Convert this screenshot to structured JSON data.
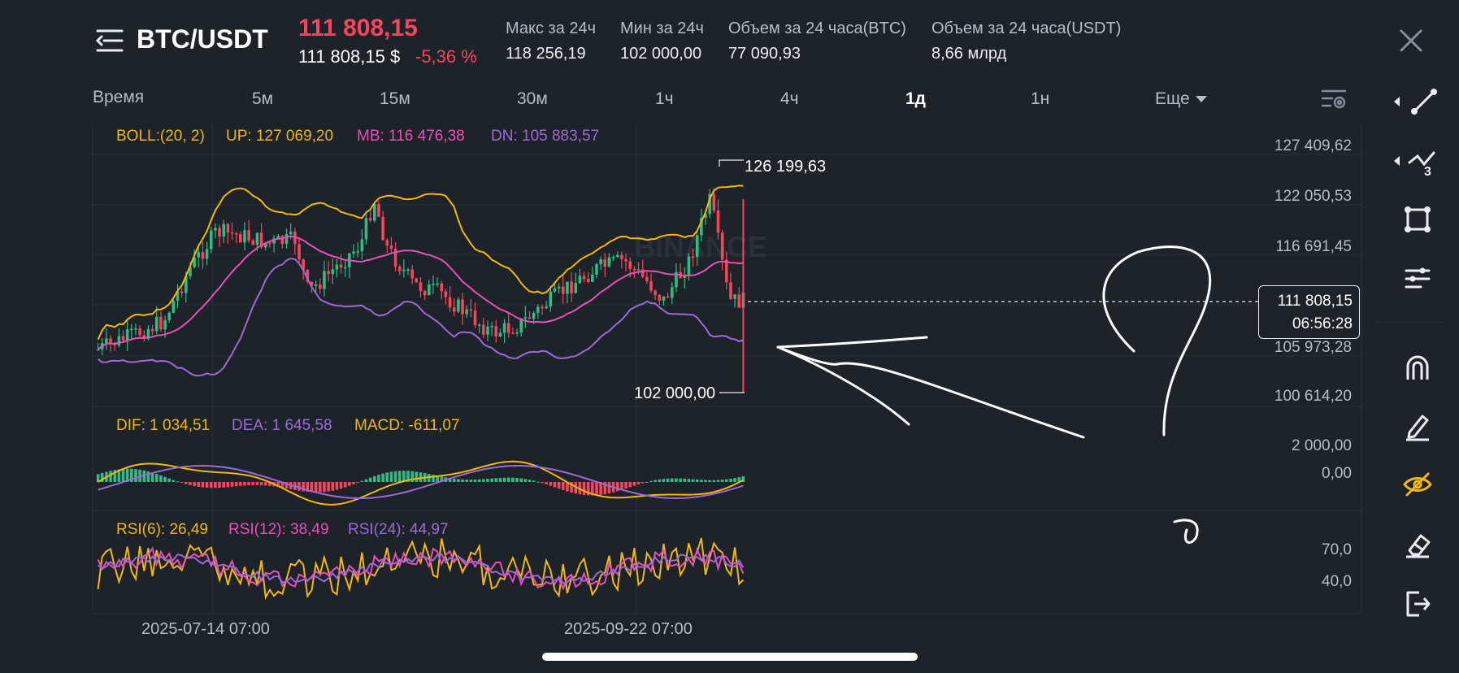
{
  "header": {
    "pair": "BTC/USDT",
    "price": "111 808,15",
    "price_usd": "111 808,15 $",
    "change": "-5,36 %",
    "stats": [
      {
        "label": "Макс за 24ч",
        "value": "118 256,19"
      },
      {
        "label": "Мин за 24ч",
        "value": "102 000,00"
      },
      {
        "label": "Объем за 24 часа(BTC)",
        "value": "77 090,93"
      },
      {
        "label": "Объем за 24 часа(USDT)",
        "value": "8,66 млрд"
      }
    ]
  },
  "timeframes": [
    "Время",
    "5м",
    "15м",
    "30м",
    "1ч",
    "4ч",
    "1д",
    "1н"
  ],
  "timeframe_active": "1д",
  "more_label": "Еще",
  "indicators": {
    "boll": {
      "name": "BOLL:(20, 2)",
      "up": "UP: 127 069,20",
      "mb": "MB: 116 476,38",
      "dn": "DN: 105 883,57"
    },
    "macd": {
      "dif": "DIF: 1 034,51",
      "dea": "DEA: 1 645,58",
      "macd": "MACD: -611,07"
    },
    "rsi": {
      "rsi6": "RSI(6): 26,49",
      "rsi12": "RSI(12): 38,49",
      "rsi24": "RSI(24): 44,97"
    }
  },
  "price_axis": [
    "127 409,62",
    "122 050,53",
    "116 691,45",
    "105 973,28",
    "100 614,20"
  ],
  "macd_axis": [
    "2 000,00",
    "0,00"
  ],
  "rsi_axis": [
    "70,0",
    "40,0"
  ],
  "current_price_tag": {
    "price": "111 808,15",
    "countdown": "06:56:28"
  },
  "high_marker": "126 199,63",
  "low_marker": "102 000,00",
  "date_labels": [
    "2025-07-14 07:00",
    "2025-09-22 07:00"
  ],
  "watermark": "BINANCE",
  "colors": {
    "up": "#2ebd85",
    "down": "#f6465d",
    "boll_up": "#f0b90b",
    "boll_mb": "#e84fb8",
    "boll_dn": "#9c6ad8",
    "bg": "#1e2329"
  },
  "chart_data": {
    "type": "candlestick",
    "series": [
      {
        "name": "BOLL UP",
        "values": []
      },
      {
        "name": "BOLL MB",
        "values": []
      },
      {
        "name": "BOLL DN",
        "values": []
      }
    ],
    "price_range": [
      100614.2,
      127409.62
    ],
    "high": 126199.63,
    "low": 102000.0,
    "last": 111808.15
  }
}
